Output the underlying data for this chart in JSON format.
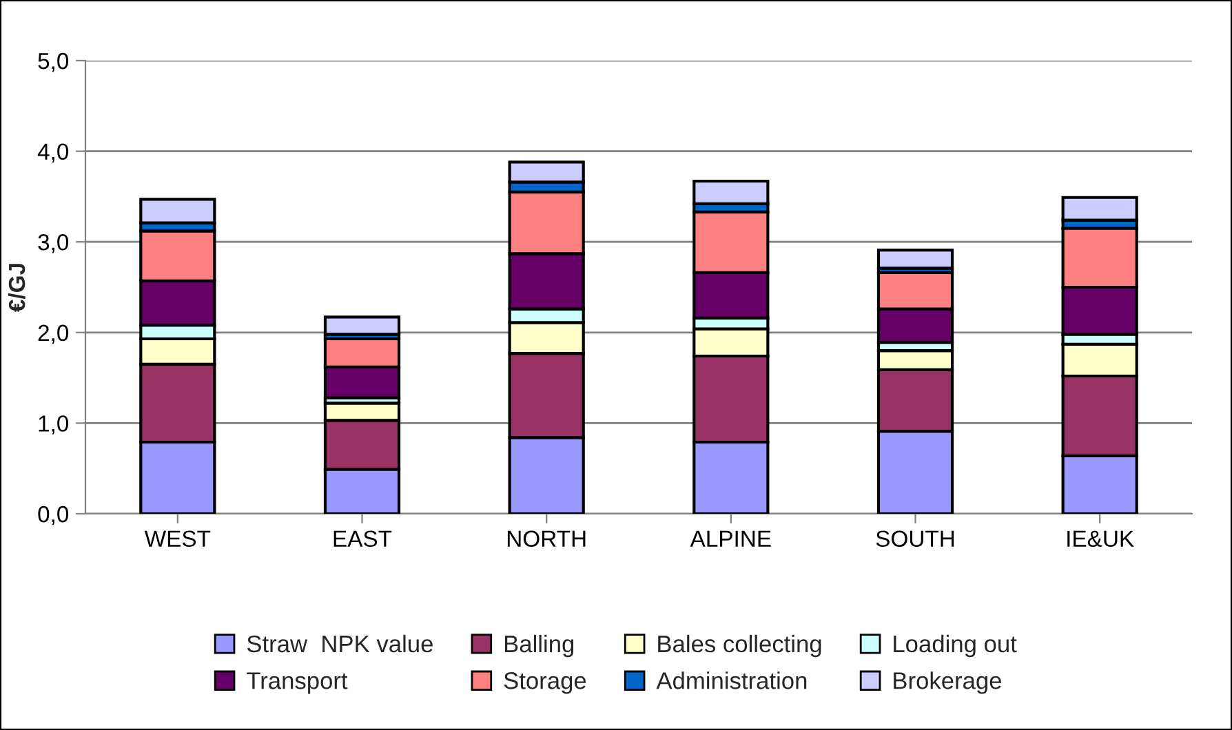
{
  "chart_data": {
    "type": "bar",
    "stacked": true,
    "ylabel": "€/GJ",
    "categories": [
      "WEST",
      "EAST",
      "NORTH",
      "ALPINE",
      "SOUTH",
      "IE&UK"
    ],
    "series": [
      {
        "name": "Straw  NPK value",
        "color": "#9999ff",
        "values": [
          0.79,
          0.49,
          0.84,
          0.79,
          0.91,
          0.64
        ]
      },
      {
        "name": "Balling",
        "color": "#993366",
        "values": [
          0.86,
          0.54,
          0.93,
          0.95,
          0.68,
          0.88
        ]
      },
      {
        "name": "Bales collecting",
        "color": "#ffffcc",
        "values": [
          0.28,
          0.19,
          0.34,
          0.3,
          0.21,
          0.35
        ]
      },
      {
        "name": "Loading out",
        "color": "#ccffff",
        "values": [
          0.15,
          0.06,
          0.15,
          0.12,
          0.09,
          0.11
        ]
      },
      {
        "name": "Transport",
        "color": "#660066",
        "values": [
          0.49,
          0.34,
          0.61,
          0.5,
          0.37,
          0.52
        ]
      },
      {
        "name": "Storage",
        "color": "#ff8080",
        "values": [
          0.55,
          0.31,
          0.68,
          0.67,
          0.4,
          0.65
        ]
      },
      {
        "name": "Administration",
        "color": "#0066cc",
        "values": [
          0.09,
          0.05,
          0.11,
          0.09,
          0.05,
          0.09
        ]
      },
      {
        "name": "Brokerage",
        "color": "#ccccff",
        "values": [
          0.26,
          0.19,
          0.22,
          0.25,
          0.2,
          0.25
        ]
      }
    ],
    "ylim": [
      0,
      5
    ],
    "yticks": [
      {
        "value": 0,
        "label": "0,0"
      },
      {
        "value": 1,
        "label": "1,0"
      },
      {
        "value": 2,
        "label": "2,0"
      },
      {
        "value": 3,
        "label": "3,0"
      },
      {
        "value": 4,
        "label": "4,0"
      },
      {
        "value": 5,
        "label": "5,0"
      }
    ],
    "grid": "y",
    "legend": "bottom"
  }
}
